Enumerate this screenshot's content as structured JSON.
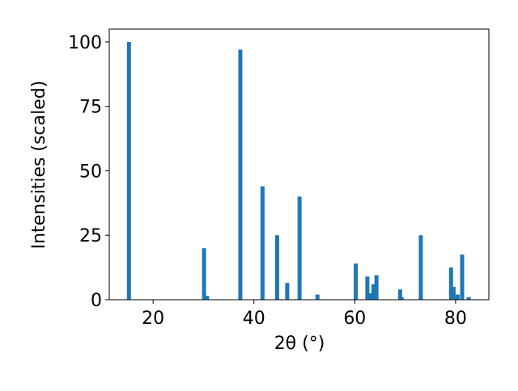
{
  "chart_data": {
    "type": "bar",
    "xlabel": "2θ (°)",
    "ylabel": "Intensities (scaled)",
    "x": [
      15.2,
      30.1,
      30.7,
      37.3,
      41.7,
      44.6,
      46.6,
      49.05,
      52.6,
      60.2,
      62.5,
      63.2,
      63.7,
      64.3,
      69.0,
      69.3,
      73.1,
      79.1,
      79.6,
      80.4,
      81.3,
      82.6
    ],
    "values": [
      100,
      20,
      1.5,
      97,
      44,
      25,
      6.5,
      40,
      2,
      14,
      9,
      2.5,
      6,
      9.5,
      4,
      1,
      25,
      12.5,
      5,
      2,
      17.5,
      1
    ],
    "color": "#1f77b4",
    "xlim": [
      11.3,
      86.6
    ],
    "ylim": [
      0,
      105
    ],
    "xticks": [
      20,
      40,
      60,
      80
    ],
    "yticks": [
      0,
      25,
      50,
      75,
      100
    ]
  }
}
